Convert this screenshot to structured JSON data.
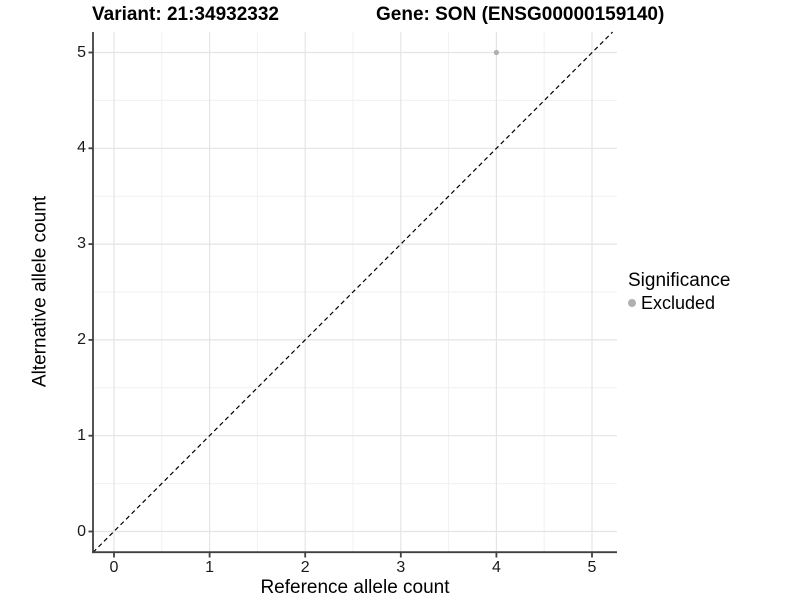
{
  "title": {
    "variant": "Variant: 21:34932332",
    "gene": "Gene: SON (ENSG00000159140)"
  },
  "axes": {
    "x": {
      "label": "Reference allele count",
      "ticks": [
        "0",
        "1",
        "2",
        "3",
        "4",
        "5"
      ]
    },
    "y": {
      "label": "Alternative allele count",
      "ticks": [
        "0",
        "1",
        "2",
        "3",
        "4",
        "5"
      ]
    }
  },
  "legend": {
    "title": "Significance",
    "items": [
      {
        "label": "Excluded",
        "color": "#b0b0b0"
      }
    ]
  },
  "chart_data": {
    "type": "scatter",
    "title": "Variant: 21:34932332    Gene: SON (ENSG00000159140)",
    "xlabel": "Reference allele count",
    "ylabel": "Alternative allele count",
    "xlim": [
      -0.25,
      5.25
    ],
    "ylim": [
      -0.25,
      5.25
    ],
    "x_ticks": [
      0,
      1,
      2,
      3,
      4,
      5
    ],
    "y_ticks": [
      0,
      1,
      2,
      3,
      4,
      5
    ],
    "grid": "major and minor, light gray on white",
    "legend_position": "right",
    "series": [
      {
        "name": "Excluded",
        "color": "#b0b0b0",
        "points": [
          {
            "x": 4,
            "y": 5
          }
        ]
      }
    ],
    "reference_line": {
      "type": "identity y=x",
      "style": "dashed",
      "color": "#000000"
    }
  },
  "colors": {
    "background": "#ffffff",
    "grid_major": "#e4e4e4",
    "grid_minor": "#f1f1f1",
    "axis_line": "#404040",
    "point": "#b0b0b0"
  }
}
